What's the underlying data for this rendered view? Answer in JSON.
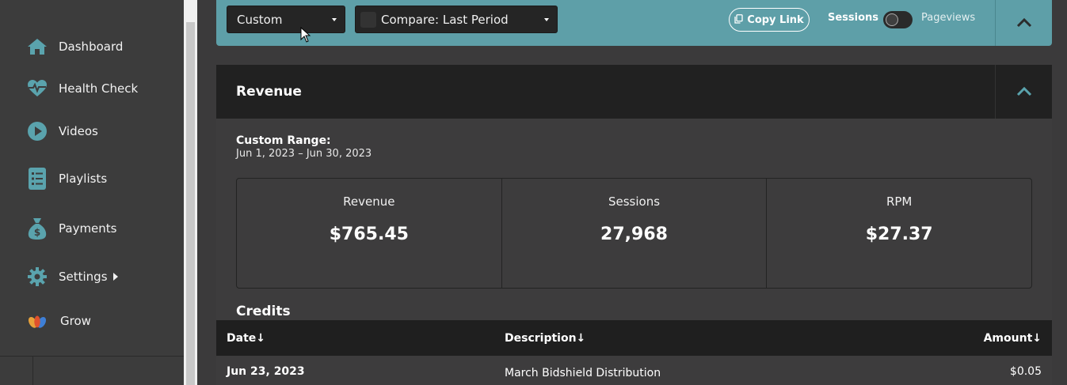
{
  "sidebar": {
    "items": [
      {
        "label": "Dashboard",
        "icon": "home-icon"
      },
      {
        "label": "Health Check",
        "icon": "heartbeat-icon"
      },
      {
        "label": "Videos",
        "icon": "play-icon"
      },
      {
        "label": "Playlists",
        "icon": "list-icon"
      },
      {
        "label": "Payments",
        "icon": "money-bag-icon"
      },
      {
        "label": "Settings",
        "icon": "gear-icon"
      },
      {
        "label": "Grow",
        "icon": "grow-logo-icon"
      }
    ]
  },
  "filter_bar": {
    "range_select": "Custom",
    "compare_select": "Compare: Last Period",
    "copy_link": "Copy Link",
    "toggle_left": "Sessions",
    "toggle_right": "Pageviews"
  },
  "revenue_card": {
    "title": "Revenue",
    "range_label": "Custom Range:",
    "range_value": "Jun 1, 2023 – Jun 30, 2023",
    "stats": [
      {
        "label": "Revenue",
        "value": "$765.45"
      },
      {
        "label": "Sessions",
        "value": "27,968"
      },
      {
        "label": "RPM",
        "value": "$27.37"
      }
    ]
  },
  "credits": {
    "title": "Credits",
    "columns": [
      "Date↓",
      "Description↓",
      "Amount↓"
    ],
    "rows": [
      {
        "date": "Jun 23, 2023",
        "description": "March Bidshield Distribution",
        "amount": "$0.05"
      }
    ]
  },
  "colors": {
    "accent": "#5e9fa8",
    "icon": "#5aa3ad",
    "background": "#3b3a3b",
    "header_dark": "#212121"
  }
}
